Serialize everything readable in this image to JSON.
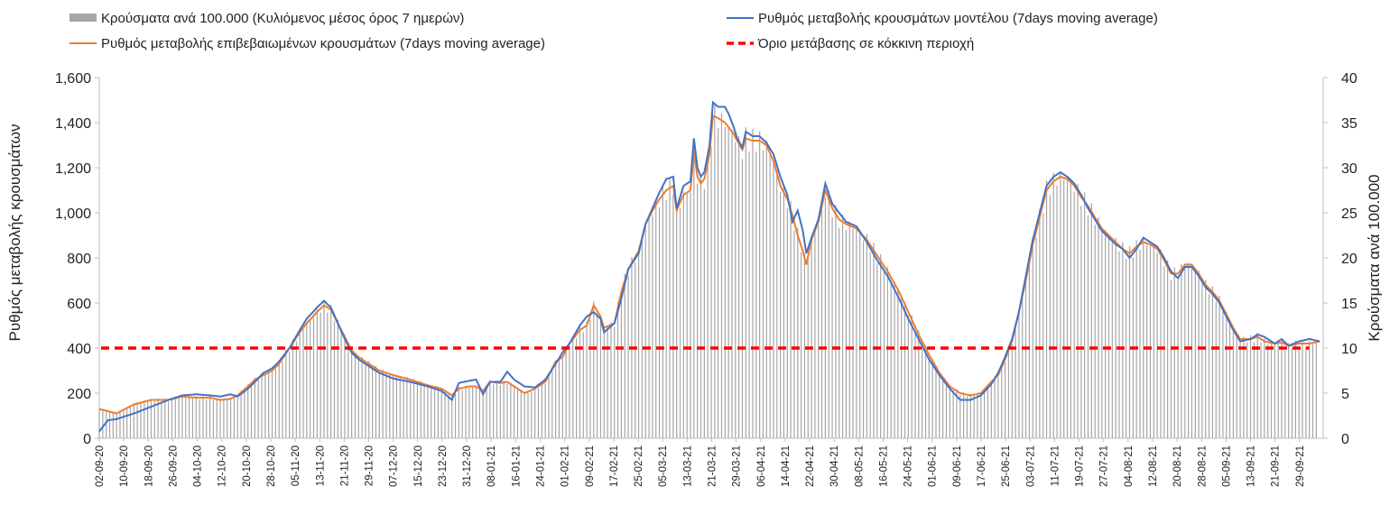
{
  "chart_data": {
    "type": "bar+line",
    "title": "",
    "legend": [
      {
        "key": "bars",
        "label": "Κρούσματα ανά 100.000 (Κυλιόμενος μέσος όρος 7 ημερών)",
        "color": "#a6a6a6",
        "style": "bar"
      },
      {
        "key": "model",
        "label": "Ρυθμός μεταβολής κρουσμάτων μοντέλου (7days moving average)",
        "color": "#4472c4",
        "style": "line"
      },
      {
        "key": "confirmed",
        "label": "Ρυθμός μεταβολής επιβεβαιωμένων κρουσμάτων (7days moving average)",
        "color": "#ed7d31",
        "style": "line"
      },
      {
        "key": "threshold",
        "label": "Όριο μετάβασης σε κόκκινη περιοχή",
        "color": "#ff0000",
        "style": "dashed"
      }
    ],
    "ylabel_left": "Ρυθμός μεταβολής κρουσμάτων",
    "ylabel_right": "Κρούσματα ανά 100.000",
    "ylim_left": [
      0,
      1600
    ],
    "ylim_right": [
      0,
      40
    ],
    "yticks_left": [
      "0",
      "200",
      "400",
      "600",
      "800",
      "1,000",
      "1,200",
      "1,400",
      "1,600"
    ],
    "yticks_right": [
      "0",
      "5",
      "10",
      "15",
      "20",
      "25",
      "30",
      "35",
      "40"
    ],
    "x_tick_labels": [
      "02-09-20",
      "10-09-20",
      "18-09-20",
      "26-09-20",
      "04-10-20",
      "12-10-20",
      "20-10-20",
      "28-10-20",
      "05-11-20",
      "13-11-20",
      "21-11-20",
      "29-11-20",
      "07-12-20",
      "15-12-20",
      "23-12-20",
      "31-12-20",
      "08-01-21",
      "16-01-21",
      "24-01-21",
      "01-02-21",
      "09-02-21",
      "17-02-21",
      "25-02-21",
      "05-03-21",
      "13-03-21",
      "21-03-21",
      "29-03-21",
      "06-04-21",
      "14-04-21",
      "22-04-21",
      "30-04-21",
      "08-05-21",
      "16-05-21",
      "24-05-21",
      "01-06-21",
      "09-06-21",
      "17-06-21",
      "25-06-21",
      "03-07-21",
      "11-07-21",
      "19-07-21",
      "27-07-21",
      "04-08-21",
      "12-08-21",
      "20-08-21",
      "28-08-21",
      "05-09-21",
      "13-09-21",
      "21-09-21",
      "29-09-21"
    ],
    "x_tick_interval_days": 8,
    "n_days": 400,
    "threshold": 400,
    "model_series_keypoints": [
      [
        0,
        30
      ],
      [
        5,
        80
      ],
      [
        10,
        85
      ],
      [
        20,
        110
      ],
      [
        30,
        140
      ],
      [
        40,
        170
      ],
      [
        48,
        190
      ],
      [
        56,
        195
      ],
      [
        64,
        190
      ],
      [
        70,
        185
      ],
      [
        76,
        195
      ],
      [
        80,
        185
      ],
      [
        86,
        220
      ],
      [
        90,
        250
      ],
      [
        95,
        290
      ],
      [
        100,
        310
      ],
      [
        104,
        340
      ],
      [
        110,
        400
      ],
      [
        116,
        480
      ],
      [
        120,
        530
      ],
      [
        126,
        580
      ],
      [
        130,
        610
      ],
      [
        134,
        580
      ],
      [
        138,
        510
      ],
      [
        142,
        440
      ],
      [
        146,
        380
      ],
      [
        150,
        350
      ],
      [
        156,
        320
      ],
      [
        162,
        290
      ],
      [
        170,
        265
      ],
      [
        180,
        250
      ],
      [
        190,
        230
      ],
      [
        198,
        210
      ],
      [
        204,
        170
      ],
      [
        208,
        245
      ],
      [
        214,
        255
      ],
      [
        218,
        260
      ],
      [
        222,
        195
      ],
      [
        226,
        250
      ],
      [
        232,
        250
      ],
      [
        236,
        295
      ],
      [
        240,
        260
      ],
      [
        246,
        230
      ],
      [
        252,
        225
      ],
      [
        258,
        260
      ],
      [
        264,
        330
      ],
      [
        268,
        380
      ],
      [
        272,
        420
      ],
      [
        278,
        500
      ],
      [
        282,
        540
      ],
      [
        286,
        560
      ],
      [
        290,
        530
      ],
      [
        292,
        470
      ],
      [
        298,
        510
      ],
      [
        302,
        620
      ],
      [
        306,
        750
      ],
      [
        312,
        820
      ],
      [
        316,
        950
      ],
      [
        320,
        1020
      ],
      [
        324,
        1090
      ],
      [
        328,
        1150
      ],
      [
        332,
        1160
      ],
      [
        334,
        1020
      ],
      [
        338,
        1120
      ],
      [
        342,
        1140
      ],
      [
        344,
        1330
      ],
      [
        346,
        1200
      ],
      [
        348,
        1160
      ],
      [
        350,
        1180
      ],
      [
        353,
        1300
      ],
      [
        355,
        1490
      ],
      [
        358,
        1470
      ],
      [
        362,
        1470
      ],
      [
        364,
        1440
      ],
      [
        367,
        1380
      ],
      [
        369,
        1330
      ],
      [
        372,
        1290
      ],
      [
        374,
        1360
      ],
      [
        378,
        1340
      ],
      [
        382,
        1340
      ],
      [
        386,
        1310
      ],
      [
        390,
        1260
      ],
      [
        394,
        1160
      ],
      [
        398,
        1080
      ],
      [
        401,
        960
      ],
      [
        404,
        1010
      ],
      [
        407,
        920
      ],
      [
        409,
        820
      ],
      [
        412,
        890
      ],
      [
        416,
        970
      ],
      [
        420,
        1130
      ],
      [
        424,
        1040
      ],
      [
        428,
        1000
      ],
      [
        432,
        960
      ],
      [
        438,
        940
      ],
      [
        444,
        870
      ],
      [
        450,
        790
      ],
      [
        456,
        720
      ],
      [
        462,
        630
      ],
      [
        468,
        530
      ],
      [
        474,
        440
      ],
      [
        480,
        350
      ],
      [
        486,
        280
      ],
      [
        492,
        220
      ],
      [
        498,
        170
      ],
      [
        504,
        170
      ],
      [
        510,
        190
      ],
      [
        516,
        240
      ],
      [
        520,
        290
      ],
      [
        524,
        360
      ],
      [
        528,
        440
      ],
      [
        532,
        560
      ],
      [
        536,
        720
      ],
      [
        540,
        880
      ],
      [
        544,
        1000
      ],
      [
        548,
        1120
      ],
      [
        552,
        1160
      ],
      [
        556,
        1180
      ],
      [
        560,
        1160
      ],
      [
        564,
        1130
      ],
      [
        568,
        1080
      ],
      [
        572,
        1020
      ],
      [
        576,
        970
      ],
      [
        580,
        920
      ],
      [
        584,
        890
      ],
      [
        588,
        860
      ],
      [
        592,
        840
      ],
      [
        596,
        800
      ],
      [
        600,
        840
      ],
      [
        604,
        890
      ],
      [
        608,
        870
      ],
      [
        612,
        850
      ],
      [
        616,
        800
      ],
      [
        620,
        740
      ],
      [
        624,
        710
      ],
      [
        628,
        760
      ],
      [
        632,
        760
      ],
      [
        636,
        720
      ],
      [
        640,
        670
      ],
      [
        644,
        640
      ],
      [
        648,
        600
      ],
      [
        652,
        540
      ],
      [
        656,
        480
      ],
      [
        660,
        430
      ],
      [
        666,
        440
      ],
      [
        670,
        460
      ],
      [
        674,
        450
      ],
      [
        680,
        420
      ],
      [
        684,
        440
      ],
      [
        688,
        410
      ],
      [
        694,
        430
      ],
      [
        700,
        440
      ],
      [
        706,
        430
      ]
    ],
    "confirmed_series_keypoints": [
      [
        0,
        130
      ],
      [
        10,
        110
      ],
      [
        20,
        150
      ],
      [
        30,
        170
      ],
      [
        40,
        170
      ],
      [
        48,
        185
      ],
      [
        56,
        180
      ],
      [
        64,
        180
      ],
      [
        70,
        170
      ],
      [
        76,
        175
      ],
      [
        80,
        190
      ],
      [
        86,
        230
      ],
      [
        90,
        260
      ],
      [
        95,
        280
      ],
      [
        100,
        300
      ],
      [
        104,
        330
      ],
      [
        110,
        400
      ],
      [
        116,
        470
      ],
      [
        120,
        510
      ],
      [
        126,
        560
      ],
      [
        130,
        590
      ],
      [
        134,
        570
      ],
      [
        138,
        510
      ],
      [
        142,
        450
      ],
      [
        146,
        390
      ],
      [
        150,
        360
      ],
      [
        156,
        330
      ],
      [
        162,
        300
      ],
      [
        170,
        280
      ],
      [
        180,
        260
      ],
      [
        190,
        235
      ],
      [
        198,
        220
      ],
      [
        204,
        190
      ],
      [
        208,
        220
      ],
      [
        214,
        230
      ],
      [
        218,
        230
      ],
      [
        222,
        210
      ],
      [
        226,
        250
      ],
      [
        232,
        245
      ],
      [
        236,
        250
      ],
      [
        240,
        230
      ],
      [
        246,
        200
      ],
      [
        252,
        220
      ],
      [
        258,
        250
      ],
      [
        264,
        340
      ],
      [
        268,
        360
      ],
      [
        272,
        420
      ],
      [
        278,
        480
      ],
      [
        282,
        500
      ],
      [
        286,
        590
      ],
      [
        290,
        540
      ],
      [
        292,
        490
      ],
      [
        298,
        510
      ],
      [
        302,
        650
      ],
      [
        306,
        750
      ],
      [
        312,
        830
      ],
      [
        316,
        950
      ],
      [
        320,
        1010
      ],
      [
        324,
        1060
      ],
      [
        328,
        1100
      ],
      [
        332,
        1120
      ],
      [
        334,
        1010
      ],
      [
        338,
        1080
      ],
      [
        342,
        1100
      ],
      [
        344,
        1270
      ],
      [
        346,
        1160
      ],
      [
        348,
        1130
      ],
      [
        350,
        1150
      ],
      [
        353,
        1260
      ],
      [
        355,
        1430
      ],
      [
        358,
        1420
      ],
      [
        362,
        1400
      ],
      [
        364,
        1380
      ],
      [
        367,
        1350
      ],
      [
        369,
        1320
      ],
      [
        372,
        1280
      ],
      [
        374,
        1330
      ],
      [
        378,
        1320
      ],
      [
        382,
        1320
      ],
      [
        386,
        1300
      ],
      [
        390,
        1230
      ],
      [
        394,
        1120
      ],
      [
        398,
        1060
      ],
      [
        401,
        990
      ],
      [
        404,
        900
      ],
      [
        407,
        830
      ],
      [
        409,
        770
      ],
      [
        412,
        880
      ],
      [
        416,
        960
      ],
      [
        420,
        1100
      ],
      [
        424,
        1020
      ],
      [
        428,
        970
      ],
      [
        432,
        950
      ],
      [
        438,
        930
      ],
      [
        444,
        880
      ],
      [
        450,
        810
      ],
      [
        456,
        740
      ],
      [
        462,
        660
      ],
      [
        468,
        560
      ],
      [
        474,
        460
      ],
      [
        480,
        370
      ],
      [
        486,
        290
      ],
      [
        492,
        230
      ],
      [
        498,
        200
      ],
      [
        504,
        190
      ],
      [
        510,
        200
      ],
      [
        516,
        250
      ],
      [
        520,
        280
      ],
      [
        524,
        350
      ],
      [
        528,
        430
      ],
      [
        532,
        560
      ],
      [
        536,
        700
      ],
      [
        540,
        860
      ],
      [
        544,
        980
      ],
      [
        548,
        1100
      ],
      [
        552,
        1140
      ],
      [
        556,
        1160
      ],
      [
        560,
        1150
      ],
      [
        564,
        1120
      ],
      [
        568,
        1070
      ],
      [
        572,
        1030
      ],
      [
        576,
        980
      ],
      [
        580,
        930
      ],
      [
        584,
        900
      ],
      [
        588,
        870
      ],
      [
        592,
        840
      ],
      [
        596,
        820
      ],
      [
        600,
        850
      ],
      [
        604,
        870
      ],
      [
        608,
        860
      ],
      [
        612,
        840
      ],
      [
        616,
        790
      ],
      [
        620,
        730
      ],
      [
        624,
        730
      ],
      [
        628,
        770
      ],
      [
        632,
        770
      ],
      [
        636,
        730
      ],
      [
        640,
        680
      ],
      [
        644,
        650
      ],
      [
        648,
        610
      ],
      [
        652,
        550
      ],
      [
        656,
        490
      ],
      [
        660,
        440
      ],
      [
        666,
        440
      ],
      [
        670,
        450
      ],
      [
        674,
        430
      ],
      [
        680,
        420
      ],
      [
        684,
        425
      ],
      [
        688,
        410
      ],
      [
        694,
        420
      ],
      [
        700,
        420
      ],
      [
        706,
        430
      ]
    ]
  }
}
